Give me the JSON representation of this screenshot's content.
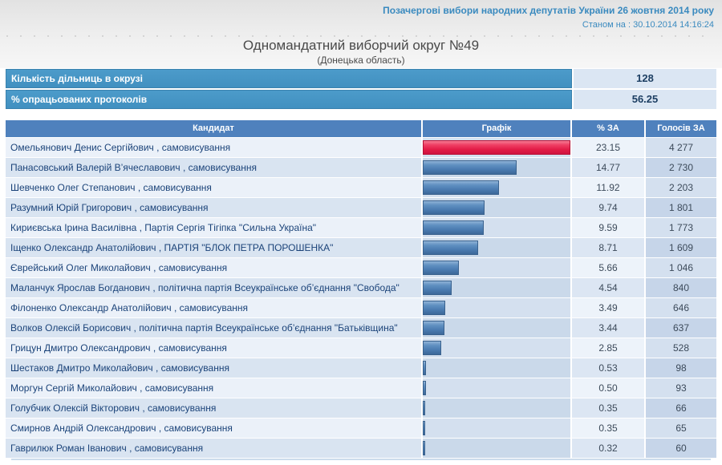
{
  "header": {
    "election_title": "Позачергові вибори народних депутатів України 26 жовтня 2014 року",
    "as_of": "Станом на : 30.10.2014 14:16:24"
  },
  "page": {
    "title": "Одномандатний виборчий округ №49",
    "subtitle": "(Донецька область)"
  },
  "stats": [
    {
      "label": "Кількість дільниць в окрузі",
      "value": "128"
    },
    {
      "label": "% опрацьованих протоколів",
      "value": "56.25"
    }
  ],
  "table": {
    "columns": [
      "Кандидат",
      "Графік",
      "% ЗА",
      "Голосів ЗА"
    ],
    "bar_scale_max": 23.15,
    "rows": [
      {
        "candidate": "Омельянович Денис Сергійович , самовисування",
        "percent": "23.15",
        "votes": "4 277",
        "bar_color": "red"
      },
      {
        "candidate": "Панасовський Валерій В’ячеславович , самовисування",
        "percent": "14.77",
        "votes": "2 730",
        "bar_color": "blue"
      },
      {
        "candidate": "Шевченко Олег Степанович , самовисування",
        "percent": "11.92",
        "votes": "2 203",
        "bar_color": "blue"
      },
      {
        "candidate": "Разумний Юрій Григорович , самовисування",
        "percent": "9.74",
        "votes": "1 801",
        "bar_color": "blue"
      },
      {
        "candidate": "Кириєвська Ірина Василівна , Партія Сергія Тігіпка \"Сильна Україна\"",
        "percent": "9.59",
        "votes": "1 773",
        "bar_color": "blue"
      },
      {
        "candidate": "Іщенко Олександр Анатолійович , ПАРТІЯ \"БЛОК ПЕТРА ПОРОШЕНКА\"",
        "percent": "8.71",
        "votes": "1 609",
        "bar_color": "blue"
      },
      {
        "candidate": "Єврейський Олег Миколайович , самовисування",
        "percent": "5.66",
        "votes": "1 046",
        "bar_color": "blue"
      },
      {
        "candidate": "Маланчук Ярослав Богданович , політична партія Всеукраїнське об’єднання \"Свобода\"",
        "percent": "4.54",
        "votes": "840",
        "bar_color": "blue"
      },
      {
        "candidate": "Філоненко Олександр Анатолійович , самовисування",
        "percent": "3.49",
        "votes": "646",
        "bar_color": "blue"
      },
      {
        "candidate": "Волков Олексій Борисович , політична партія Всеукраїнське об’єднання \"Батьківщина\"",
        "percent": "3.44",
        "votes": "637",
        "bar_color": "blue"
      },
      {
        "candidate": "Грицун Дмитро Олександрович , самовисування",
        "percent": "2.85",
        "votes": "528",
        "bar_color": "blue"
      },
      {
        "candidate": "Шестаков Дмитро Миколайович , самовисування",
        "percent": "0.53",
        "votes": "98",
        "bar_color": "blue"
      },
      {
        "candidate": "Моргун Сергій Миколайович , самовисування",
        "percent": "0.50",
        "votes": "93",
        "bar_color": "blue"
      },
      {
        "candidate": "Голубчик Олексій Вікторович , самовисування",
        "percent": "0.35",
        "votes": "66",
        "bar_color": "blue"
      },
      {
        "candidate": "Смирнов Андрій Олександрович , самовисування",
        "percent": "0.35",
        "votes": "65",
        "bar_color": "blue"
      },
      {
        "candidate": "Гаврилюк Роман Іванович , самовисування",
        "percent": "0.32",
        "votes": "60",
        "bar_color": "blue"
      }
    ]
  },
  "colors": {
    "accent_blue": "#4190c0",
    "table_header_blue": "#4f81bd",
    "bar_blue": "#4f81bd",
    "bar_red": "#e21d47",
    "header_text_blue": "#3a8abf",
    "candidate_text": "#1b4379"
  },
  "chart_data": {
    "type": "bar",
    "title": "Одномандатний виборчий округ №49 (Донецька область)",
    "categories": [
      "Омельянович Денис Сергійович",
      "Панасовський Валерій В’ячеславович",
      "Шевченко Олег Степанович",
      "Разумний Юрій Григорович",
      "Кириєвська Ірина Василівна",
      "Іщенко Олександр Анатолійович",
      "Єврейський Олег Миколайович",
      "Маланчук Ярослав Богданович",
      "Філоненко Олександр Анатолійович",
      "Волков Олексій Борисович",
      "Грицун Дмитро Олександрович",
      "Шестаков Дмитро Миколайович",
      "Моргун Сергій Миколайович",
      "Голубчик Олексій Вікторович",
      "Смирнов Андрій Олександрович",
      "Гаврилюк Роман Іванович"
    ],
    "series": [
      {
        "name": "% ЗА",
        "values": [
          23.15,
          14.77,
          11.92,
          9.74,
          9.59,
          8.71,
          5.66,
          4.54,
          3.49,
          3.44,
          2.85,
          0.53,
          0.5,
          0.35,
          0.35,
          0.32
        ]
      },
      {
        "name": "Голосів ЗА",
        "values": [
          4277,
          2730,
          2203,
          1801,
          1773,
          1609,
          1046,
          840,
          646,
          637,
          528,
          98,
          93,
          66,
          65,
          60
        ]
      }
    ],
    "xlabel": "",
    "ylabel": "% ЗА",
    "xlim": [
      0,
      23.15
    ],
    "legend_position": "none",
    "grid": false,
    "orientation": "horizontal"
  }
}
